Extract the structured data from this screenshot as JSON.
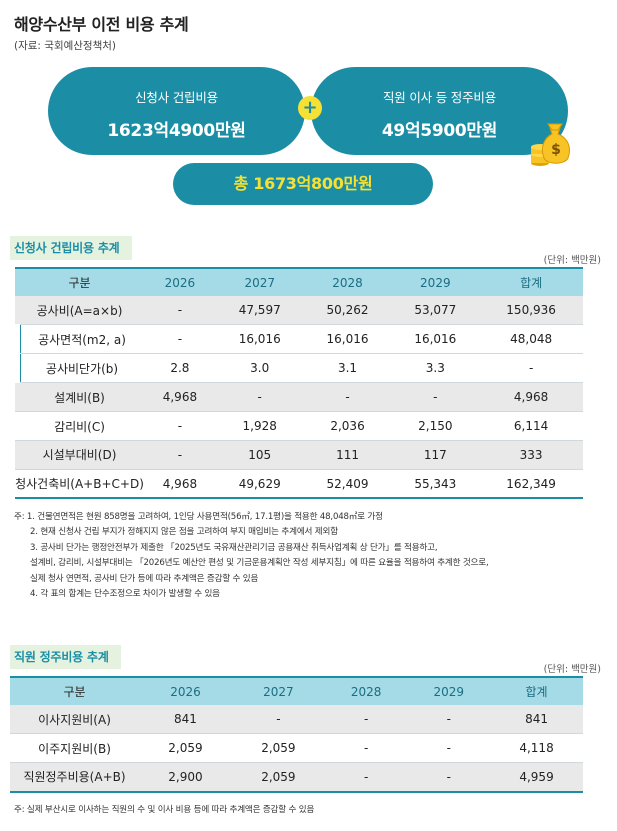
{
  "header": {
    "title": "해양수산부 이전 비용 추계",
    "source": "(자료: 국회예산정책처)"
  },
  "summary": {
    "left_label": "신청사 건립비용",
    "left_value": "1623억4900만원",
    "plus": "+",
    "right_label": "직원 이사 등 정주비용",
    "right_value": "49억5900만원",
    "total": "총 1673억800만원"
  },
  "icons": {
    "money_bag": "money-bag-icon",
    "coin": "coin-stack-icon"
  },
  "colors": {
    "accent": "#1b8ea6",
    "highlight": "#f5e033",
    "header_cell": "#a5dbe6",
    "shade_row": "#e9e9e9",
    "section_tag": "#e4f2df"
  },
  "table1": {
    "heading": "신청사 건립비용 추계",
    "unit": "(단위: 백만원)",
    "columns": [
      "구분",
      "2026",
      "2027",
      "2028",
      "2029",
      "합계"
    ],
    "rows": [
      [
        "공사비(A=a×b)",
        "-",
        "47,597",
        "50,262",
        "53,077",
        "150,936"
      ],
      [
        "공사면적(m2, a)",
        "-",
        "16,016",
        "16,016",
        "16,016",
        "48,048"
      ],
      [
        "공사비단가(b)",
        "2.8",
        "3.0",
        "3.1",
        "3.3",
        "-"
      ],
      [
        "설계비(B)",
        "4,968",
        "-",
        "-",
        "-",
        "4,968"
      ],
      [
        "감리비(C)",
        "-",
        "1,928",
        "2,036",
        "2,150",
        "6,114"
      ],
      [
        "시설부대비(D)",
        "-",
        "105",
        "111",
        "117",
        "333"
      ],
      [
        "청사건축비(A+B+C+D)",
        "4,968",
        "49,629",
        "52,409",
        "55,343",
        "162,349"
      ]
    ],
    "notes": [
      "주: 1. 건물연면적은 현원 858명을 고려하여, 1인당 사용면적(56㎡, 17.1평)을 적용한 48,048㎡로 가정",
      "2. 현재 신청사 건립 부지가 정해지지 않은 점을 고려하여 부지 매입비는 추계에서 제외함",
      "3. 공사비 단가는 행정안전부가 제출한 「2025년도 국유재산관리기금 공용재산 취득사업계획 상 단가」를 적용하고,",
      "설계비, 감리비, 시설부대비는 「2026년도 예산안 편성 및 기금운용계획안 작성 세부지침」에 따른 요율을 적용하여 추계한 것으로,",
      "실제 청사 연면적, 공사비 단가 등에 따라 추계액은 증감할 수 있음",
      "4. 각 표의 합계는 단수조정으로 차이가 발생할 수 있음"
    ]
  },
  "table2": {
    "heading": "직원 정주비용 추계",
    "unit": "(단위: 백만원)",
    "columns": [
      "구분",
      "2026",
      "2027",
      "2028",
      "2029",
      "합계"
    ],
    "rows": [
      [
        "이사지원비(A)",
        "841",
        "-",
        "-",
        "-",
        "841"
      ],
      [
        "이주지원비(B)",
        "2,059",
        "2,059",
        "-",
        "-",
        "4,118"
      ],
      [
        "직원정주비용(A+B)",
        "2,900",
        "2,059",
        "-",
        "-",
        "4,959"
      ]
    ],
    "note": "주: 실제 부산시로 이사하는 직원의 수 및 이사 비용 등에 따라 추계액은 증감할 수 있음"
  }
}
